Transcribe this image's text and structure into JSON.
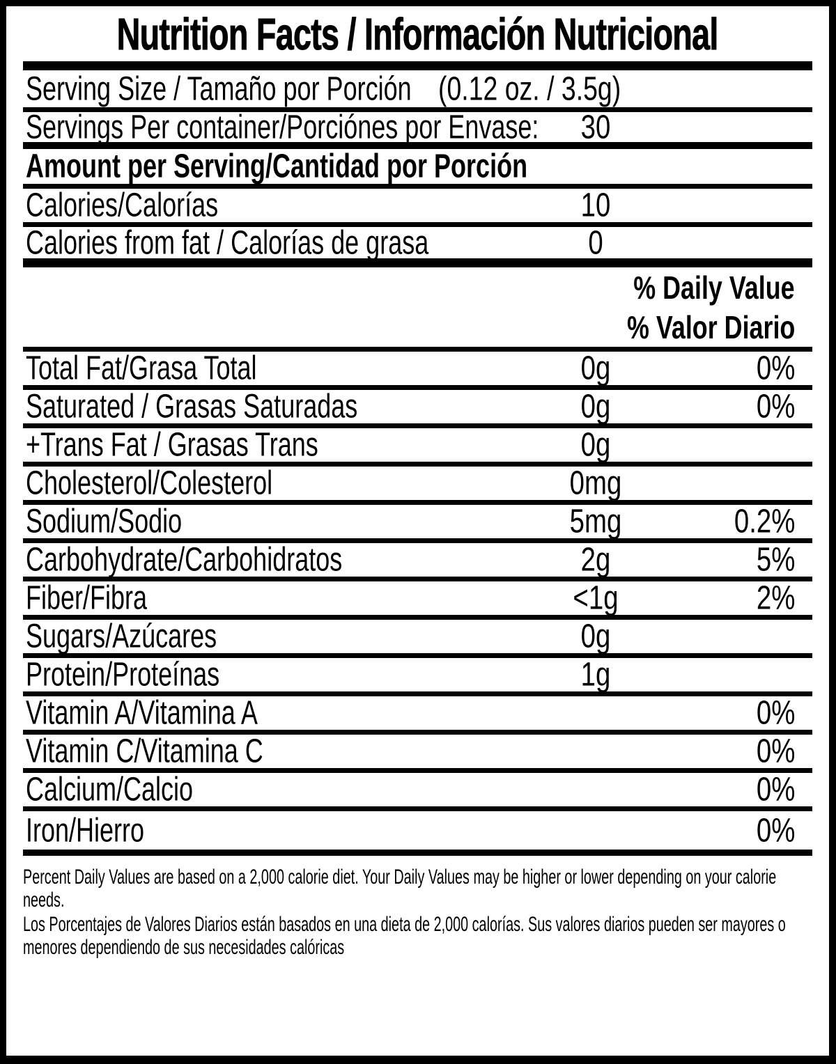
{
  "label": {
    "title": "Nutrition Facts / Información Nutricional",
    "serving_size": {
      "label": "Serving Size / Tamaño por Porción",
      "value": "(0.12 oz. / 3.5g)"
    },
    "servings_per_container": {
      "label": "Servings Per container/Porciónes por Envase:",
      "value": "30"
    },
    "amount_per_serving_header": "Amount per Serving/Cantidad por Porción",
    "calories": {
      "label": "Calories/Calorías",
      "value": "10"
    },
    "calories_from_fat": {
      "label": "Calories from fat / Calorías de grasa",
      "value": "0"
    },
    "daily_value_header_en": "% Daily Value",
    "daily_value_header_es": "% Valor Diario",
    "nutrients": [
      {
        "label": "Total Fat/Grasa Total",
        "amount": "0g",
        "dv": "0%"
      },
      {
        "label": "Saturated / Grasas Saturadas",
        "amount": "0g",
        "dv": "0%"
      },
      {
        "label": "+Trans Fat / Grasas Trans",
        "amount": "0g",
        "dv": ""
      },
      {
        "label": "Cholesterol/Colesterol",
        "amount": "0mg",
        "dv": ""
      },
      {
        "label": "Sodium/Sodio",
        "amount": "5mg",
        "dv": "0.2%"
      },
      {
        "label": "Carbohydrate/Carbohidratos",
        "amount": "2g",
        "dv": "5%"
      },
      {
        "label": "Fiber/Fibra",
        "amount": "<1g",
        "dv": "2%"
      },
      {
        "label": "Sugars/Azúcares",
        "amount": "0g",
        "dv": ""
      },
      {
        "label": "Protein/Proteínas",
        "amount": "1g",
        "dv": ""
      },
      {
        "label": "Vitamin A/Vitamina A",
        "amount": "",
        "dv": "0%"
      },
      {
        "label": "Vitamin C/Vitamina C",
        "amount": "",
        "dv": "0%"
      },
      {
        "label": "Calcium/Calcio",
        "amount": "",
        "dv": "0%"
      },
      {
        "label": "Iron/Hierro",
        "amount": "",
        "dv": "0%"
      }
    ],
    "footnote_en": "Percent Daily Values are based on a 2,000 calorie diet. Your Daily Values may be higher or lower depending on your calorie needs.",
    "footnote_es": "Los Porcentajes de Valores Diarios están basados en una dieta de 2,000 calorías. Sus valores diarios pueden ser mayores o menores dependiendo de sus necesidades calóricas"
  },
  "colors": {
    "text": "#000000",
    "background": "#ffffff"
  }
}
